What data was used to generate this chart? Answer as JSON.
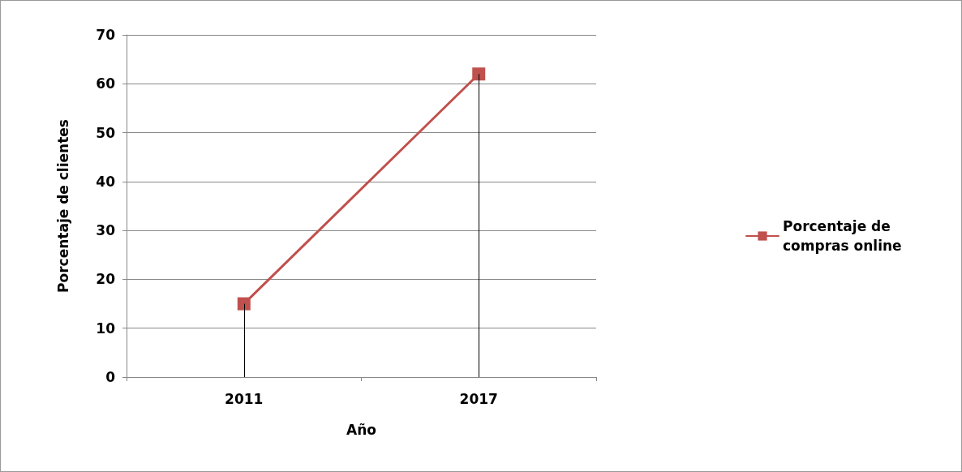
{
  "chart_data": {
    "type": "line",
    "xlabel": "Año",
    "ylabel": "Porcentaje de clientes",
    "categories": [
      "2011",
      "2017"
    ],
    "series": [
      {
        "name": "Porcentaje de compras online",
        "color": "#c0504d",
        "values": [
          15,
          62
        ],
        "errors": [
          [
            0,
            15
          ],
          [
            0,
            62
          ]
        ]
      }
    ],
    "ylim": [
      0,
      70
    ],
    "yticks": [
      0,
      10,
      20,
      30,
      40,
      50,
      60,
      70
    ],
    "grid": "y",
    "legend": "right",
    "marker": "square",
    "line_style": "solid"
  }
}
